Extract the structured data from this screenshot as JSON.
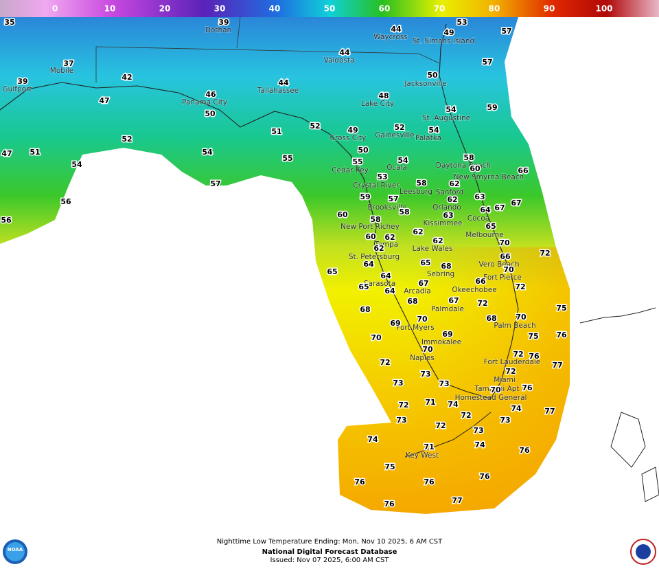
{
  "colorbar": {
    "ticks": [
      0,
      10,
      20,
      30,
      40,
      50,
      60,
      70,
      80,
      90,
      100
    ]
  },
  "cities": [
    "Dothan",
    "Waycross",
    "St. Simons Island",
    "Valdosta",
    "Mobile",
    "Gulfport",
    "Panama City",
    "Tallahassee",
    "Jacksonville",
    "Lake City",
    "St. Augustine",
    "Gainesville",
    "Palatka",
    "Cross City",
    "Cedar Key",
    "Ocala",
    "Daytona Beach",
    "New Smyrna Beach",
    "Crystal River",
    "Leesburg",
    "Sanford",
    "Orlando",
    "Brooksville",
    "Kissimmee",
    "Cocoa",
    "New Port Richey",
    "Melbourne",
    "Tampa",
    "Lake Wales",
    "St. Petersburg",
    "Vero Beach",
    "Sebring",
    "Fort Pierce",
    "Sarasota",
    "Arcadia",
    "Okeechobee",
    "Palmdale",
    "Palm Beach",
    "Fort Myers",
    "Immokalee",
    "Fort Lauderdale",
    "Naples",
    "Miami",
    "Tamiami Apt",
    "Homestead General",
    "Key West"
  ],
  "temperatures": [
    35,
    39,
    44,
    49,
    53,
    57,
    44,
    37,
    42,
    39,
    57,
    46,
    44,
    50,
    48,
    47,
    50,
    54,
    59,
    51,
    52,
    49,
    52,
    54,
    47,
    51,
    52,
    54,
    55,
    50,
    55,
    54,
    58,
    60,
    66,
    54,
    53,
    58,
    62,
    57,
    56,
    63,
    59,
    57,
    62,
    67,
    67,
    64,
    58,
    63,
    60,
    56,
    58,
    65,
    62,
    60,
    62,
    62,
    70,
    62,
    66,
    72,
    64,
    65,
    68,
    70,
    65,
    64,
    66,
    67,
    72,
    65,
    64,
    68,
    67,
    72,
    75,
    68,
    70,
    68,
    70,
    69,
    75,
    76,
    69,
    70,
    70,
    72,
    76,
    72,
    77,
    72,
    73,
    73,
    73,
    76,
    70,
    71,
    72,
    74,
    74,
    77,
    72,
    73,
    73,
    72,
    73,
    74,
    74,
    71,
    76,
    75,
    76,
    76,
    76,
    77,
    76
  ],
  "footer": {
    "caption": "Nighttime Low Temperature Ending: Mon, Nov 10 2025, 6 AM CST",
    "source": "National Digital Forecast Database",
    "issued": "Issued: Nov 07 2025, 6:00 AM CST"
  },
  "logo": "NOAA"
}
